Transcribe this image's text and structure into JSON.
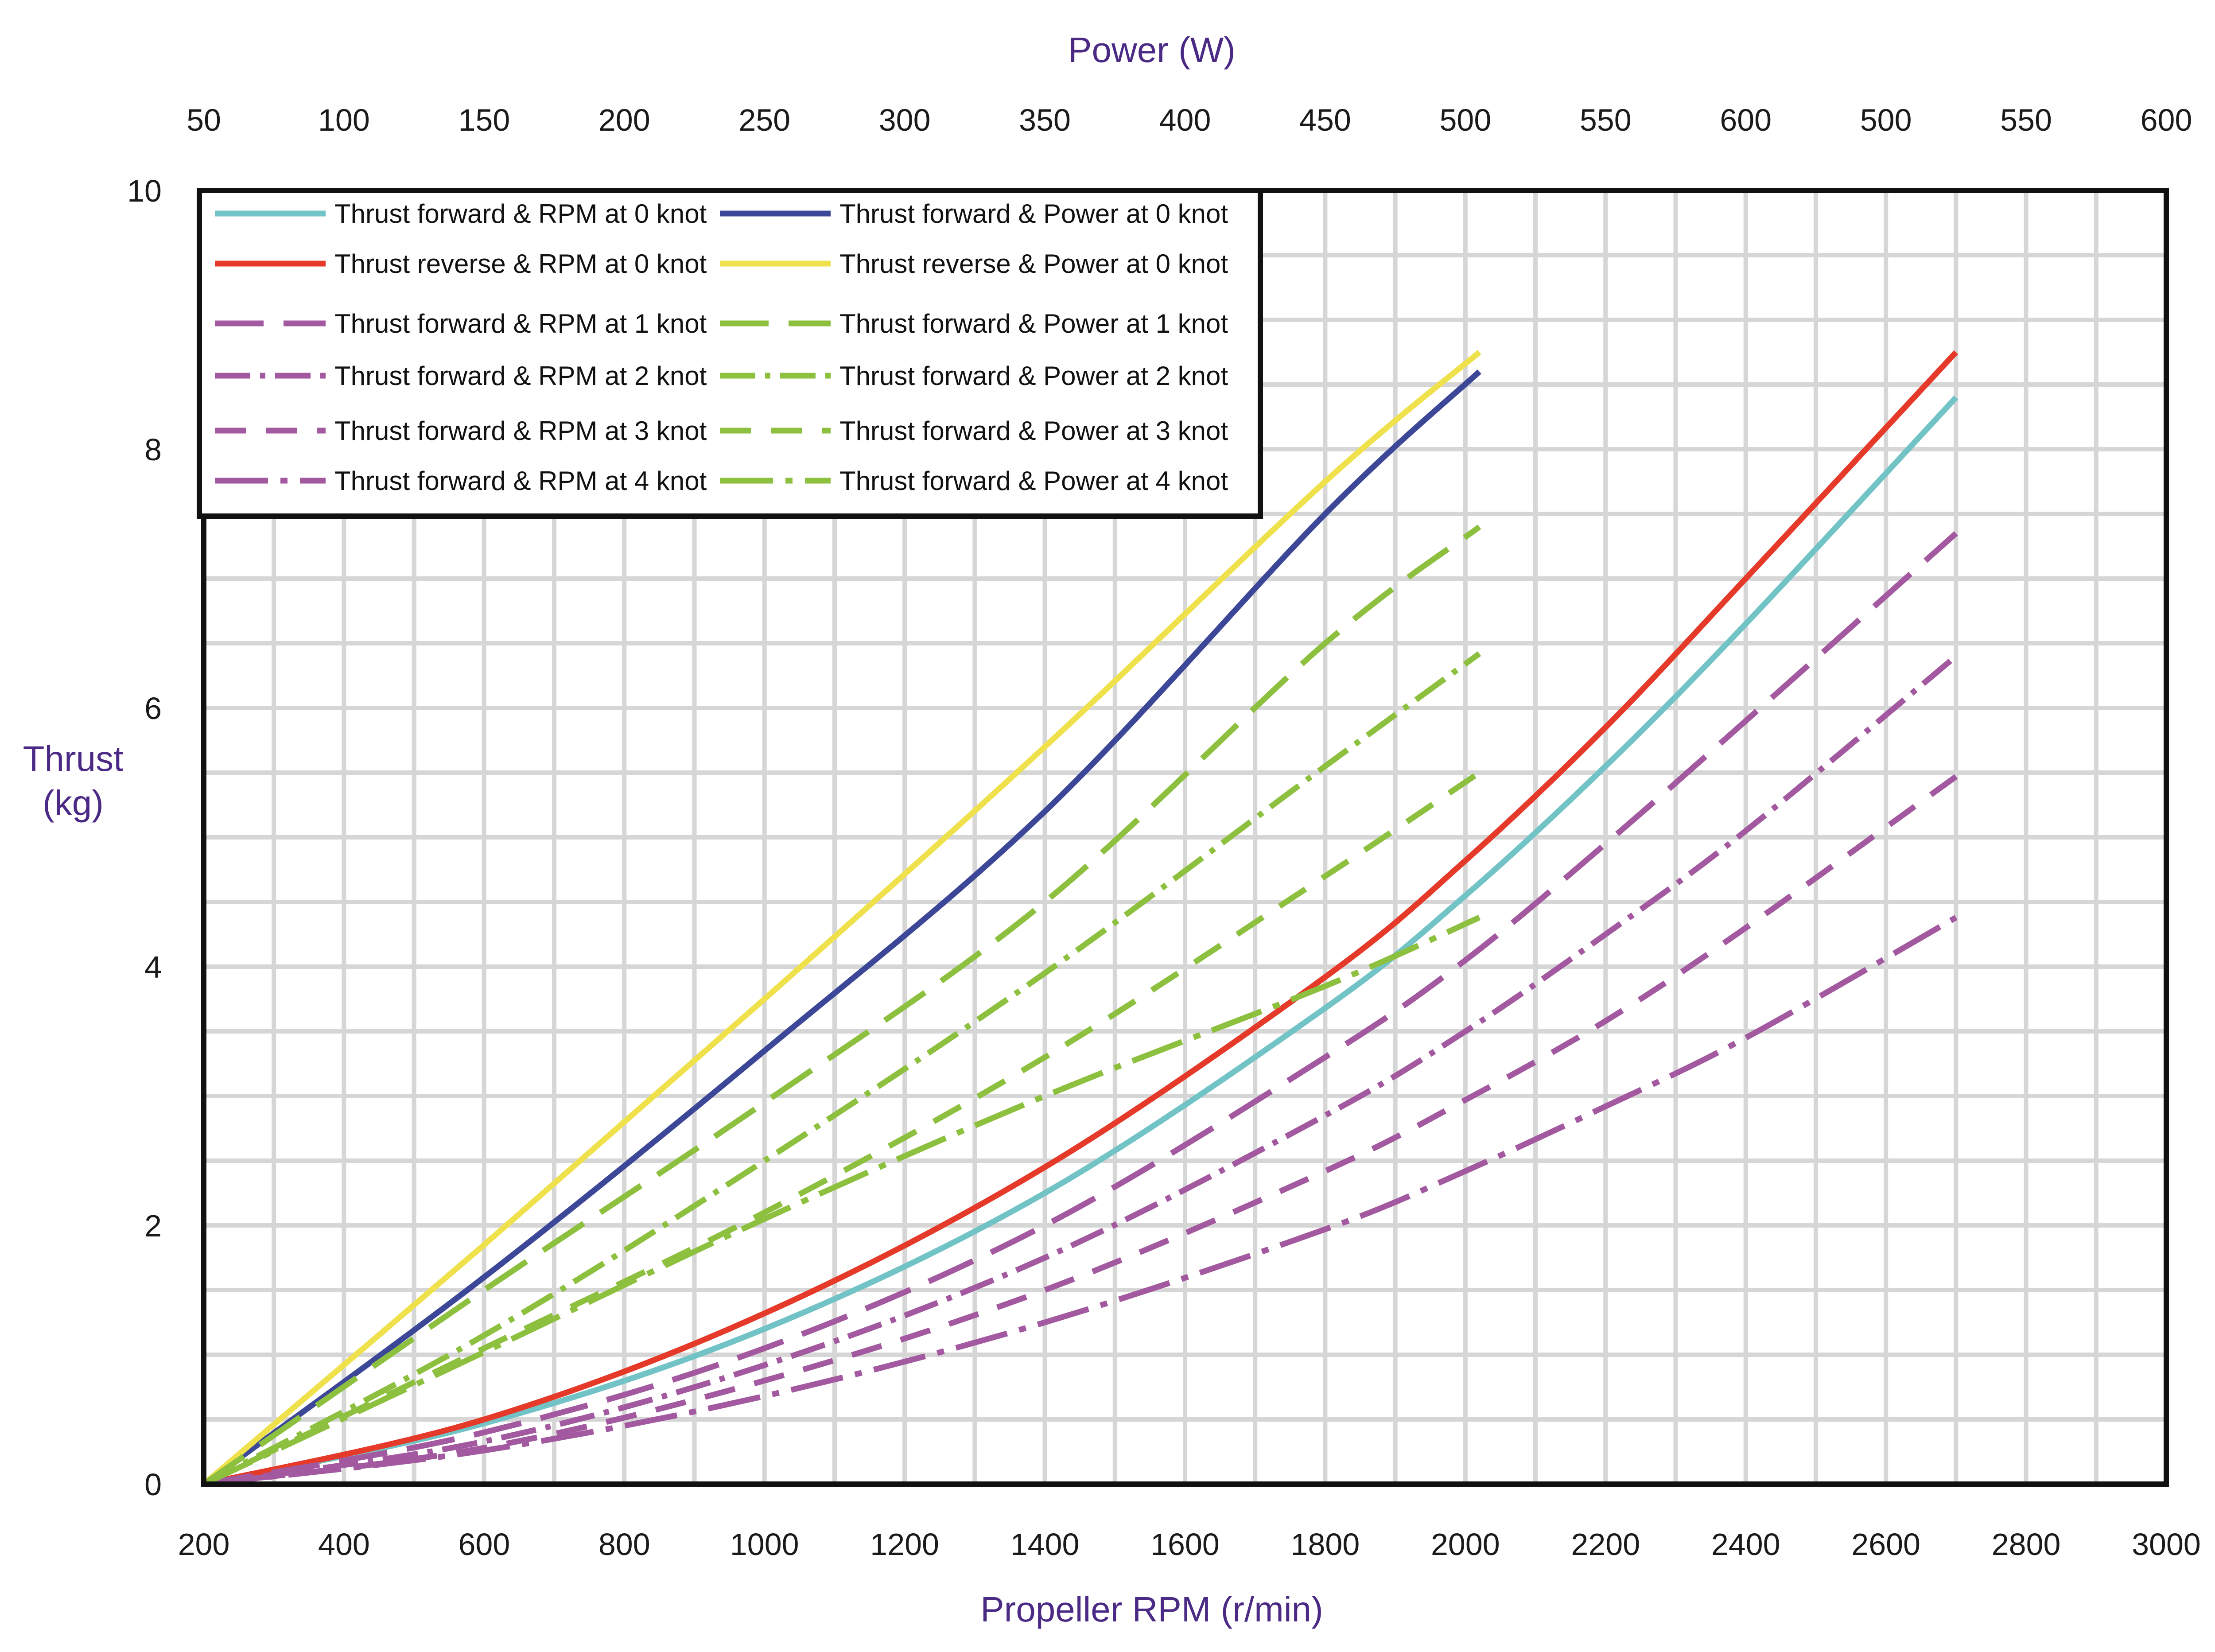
{
  "chart_data": {
    "type": "line",
    "title": "",
    "xlabel": "Propeller RPM (r/min)",
    "x2label": "Power (W)",
    "ylabel_line1": "Thrust",
    "ylabel_line2": "(kg)",
    "xlim": [
      200,
      3000
    ],
    "ylim": [
      0,
      10
    ],
    "grid": true,
    "legend_position": "top-left",
    "x_ticks": [
      "200",
      "400",
      "600",
      "800",
      "1000",
      "1200",
      "1400",
      "1600",
      "1800",
      "2000",
      "2200",
      "2400",
      "2600",
      "2800",
      "3000"
    ],
    "x2_ticks": [
      "50",
      "100",
      "150",
      "200",
      "250",
      "300",
      "350",
      "400",
      "450",
      "500",
      "550",
      "600",
      "500",
      "550",
      "600"
    ],
    "y_ticks": [
      "0",
      "2",
      "4",
      "6",
      "8",
      "10"
    ],
    "series": [
      {
        "name": "Thrust forward &  RPM at 0 knot",
        "axis": "rpm",
        "color": "#72c3c6",
        "dash": "solid",
        "x": [
          200,
          600,
          1000,
          1400,
          1800,
          2000,
          2200,
          2400,
          2700
        ],
        "y": [
          0,
          0.47,
          1.2,
          2.25,
          3.68,
          4.55,
          5.55,
          6.65,
          8.4
        ]
      },
      {
        "name": "Thrust forward & Power at 0 knot",
        "axis": "power",
        "color": "#3d4797",
        "dash": "solid",
        "x": [
          50,
          150,
          250,
          350,
          450,
          505
        ],
        "y": [
          0,
          1.6,
          3.35,
          5.2,
          7.5,
          8.6
        ]
      },
      {
        "name": "Thrust reverse  &  RPM at 0 knot",
        "axis": "rpm",
        "color": "#e53a2a",
        "dash": "solid",
        "x": [
          200,
          600,
          1000,
          1400,
          1800,
          2000,
          2200,
          2400,
          2700
        ],
        "y": [
          0,
          0.5,
          1.32,
          2.45,
          3.92,
          4.82,
          5.85,
          7.0,
          8.75
        ]
      },
      {
        "name": "Thrust reverse & Power at 0 knot",
        "axis": "power",
        "color": "#efe14b",
        "dash": "solid",
        "x": [
          50,
          150,
          250,
          350,
          450,
          505
        ],
        "y": [
          0,
          1.85,
          3.75,
          5.7,
          7.75,
          8.75
        ]
      },
      {
        "name": "Thrust forward &  RPM at 1 knot",
        "axis": "rpm",
        "color": "#a3599f",
        "dash": "long",
        "x": [
          200,
          600,
          1000,
          1400,
          1800,
          2000,
          2200,
          2400,
          2700
        ],
        "y": [
          0,
          0.4,
          1.05,
          2.0,
          3.3,
          4.05,
          4.95,
          5.9,
          7.35
        ]
      },
      {
        "name": "Thrust forward & Power at 1 knot",
        "axis": "power",
        "color": "#8dc03f",
        "dash": "long",
        "x": [
          50,
          150,
          250,
          350,
          450,
          505
        ],
        "y": [
          0,
          1.5,
          2.95,
          4.5,
          6.5,
          7.4
        ]
      },
      {
        "name": "Thrust forward &  RPM at 2 knot",
        "axis": "rpm",
        "color": "#a3599f",
        "dash": "dashdot",
        "x": [
          200,
          600,
          1000,
          1400,
          1800,
          2000,
          2200,
          2400,
          2700
        ],
        "y": [
          0,
          0.33,
          0.92,
          1.75,
          2.85,
          3.5,
          4.25,
          5.05,
          6.4
        ]
      },
      {
        "name": "Thrust forward & Power at 2 knot",
        "axis": "power",
        "color": "#8dc03f",
        "dash": "dashdot",
        "x": [
          50,
          150,
          250,
          350,
          450,
          505
        ],
        "y": [
          0,
          1.15,
          2.5,
          3.95,
          5.55,
          6.42
        ]
      },
      {
        "name": "Thrust forward &  RPM at 3 knot",
        "axis": "rpm",
        "color": "#a3599f",
        "dash": "dash",
        "x": [
          200,
          600,
          1000,
          1400,
          1800,
          2000,
          2200,
          2400,
          2700
        ],
        "y": [
          0,
          0.28,
          0.8,
          1.5,
          2.42,
          2.97,
          3.58,
          4.3,
          5.47
        ]
      },
      {
        "name": "Thrust forward & Power at 3 knot",
        "axis": "power",
        "color": "#8dc03f",
        "dash": "dash",
        "x": [
          50,
          150,
          250,
          350,
          450,
          505
        ],
        "y": [
          0,
          1.05,
          2.1,
          3.3,
          4.7,
          5.5
        ]
      },
      {
        "name": "Thrust forward &  RPM at 4 knot",
        "axis": "rpm",
        "color": "#a3599f",
        "dash": "longdashdot",
        "x": [
          200,
          600,
          1000,
          1400,
          1800,
          2000,
          2200,
          2400,
          2700
        ],
        "y": [
          0,
          0.26,
          0.68,
          1.25,
          1.97,
          2.42,
          2.92,
          3.45,
          4.38
        ]
      },
      {
        "name": "Thrust forward & Power at 4 knot",
        "axis": "power",
        "color": "#8dc03f",
        "dash": "longdashdot",
        "x": [
          50,
          150,
          250,
          350,
          450,
          505
        ],
        "y": [
          0,
          1.02,
          2.05,
          3.0,
          3.85,
          4.38
        ]
      }
    ]
  }
}
